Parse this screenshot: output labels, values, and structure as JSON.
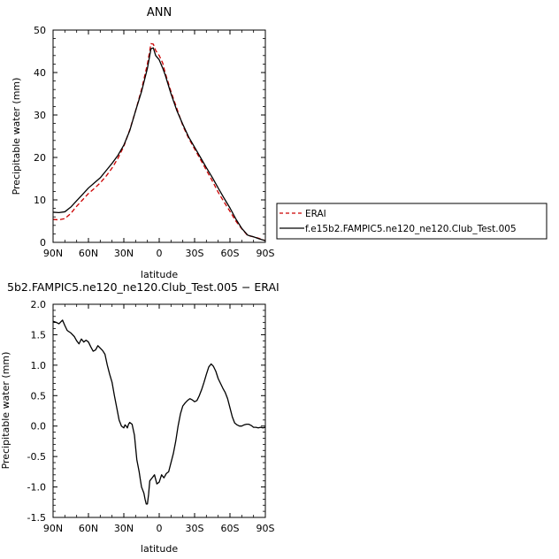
{
  "chart_data": [
    {
      "type": "line",
      "title": "ANN",
      "xlabel": "latitude",
      "ylabel": "Precipitable water  (mm)",
      "xlim": [
        90,
        -90
      ],
      "ylim": [
        0,
        50
      ],
      "x_ticks": [
        90,
        60,
        30,
        0,
        -30,
        -60,
        -90
      ],
      "x_tick_labels": [
        "90N",
        "60N",
        "30N",
        "0",
        "30S",
        "60S",
        "90S"
      ],
      "y_ticks": [
        0,
        10,
        20,
        30,
        40,
        50
      ],
      "y_tick_labels": [
        "0",
        "10",
        "20",
        "30",
        "40",
        "50"
      ],
      "legend_position": "right",
      "series": [
        {
          "name": "ERAI",
          "color": "#cc0000",
          "dash": "dashed",
          "x": [
            90,
            85,
            80,
            75,
            70,
            65,
            60,
            55,
            50,
            45,
            40,
            35,
            30,
            25,
            20,
            15,
            10,
            7,
            5,
            3,
            0,
            -3,
            -5,
            -10,
            -15,
            -20,
            -25,
            -30,
            -35,
            -40,
            -45,
            -50,
            -55,
            -60,
            -65,
            -70,
            -75,
            -80,
            -85,
            -90
          ],
          "y": [
            5.4,
            5.3,
            5.6,
            6.8,
            8.5,
            10.0,
            11.5,
            12.7,
            14.0,
            15.6,
            17.5,
            19.8,
            22.6,
            26.5,
            31.0,
            36.0,
            42.0,
            46.8,
            46.7,
            45.2,
            44.0,
            42.2,
            40.0,
            35.5,
            31.5,
            27.5,
            24.5,
            22.0,
            19.5,
            17.0,
            14.5,
            11.8,
            9.5,
            7.3,
            5.0,
            3.2,
            1.6,
            1.3,
            0.9,
            0.4
          ]
        },
        {
          "name": "f.e15b2.FAMPIC5.ne120_ne120.Club_Test.005",
          "color": "#000000",
          "dash": "solid",
          "x": [
            90,
            85,
            80,
            75,
            70,
            65,
            60,
            55,
            50,
            45,
            40,
            35,
            30,
            25,
            20,
            15,
            10,
            7,
            5,
            3,
            0,
            -3,
            -5,
            -10,
            -15,
            -20,
            -25,
            -30,
            -35,
            -40,
            -45,
            -50,
            -55,
            -60,
            -65,
            -70,
            -75,
            -80,
            -85,
            -90
          ],
          "y": [
            7.1,
            7.0,
            7.2,
            8.3,
            9.8,
            11.3,
            12.8,
            14.0,
            15.2,
            16.9,
            18.6,
            20.5,
            22.9,
            26.3,
            31.0,
            35.5,
            41.0,
            45.6,
            45.8,
            44.0,
            43.0,
            41.0,
            39.5,
            35.0,
            31.0,
            27.8,
            24.8,
            22.4,
            20.0,
            17.6,
            15.3,
            12.8,
            10.4,
            8.1,
            5.5,
            3.3,
            1.7,
            1.3,
            0.8,
            0.4
          ]
        }
      ]
    },
    {
      "type": "line",
      "title": "5b2.FAMPIC5.ne120_ne120.Club_Test.005 − ERAI",
      "xlabel": "latitude",
      "ylabel": "Precipitable water  (mm)",
      "xlim": [
        90,
        -90
      ],
      "ylim": [
        -1.5,
        2.0
      ],
      "x_ticks": [
        90,
        60,
        30,
        0,
        -30,
        -60,
        -90
      ],
      "x_tick_labels": [
        "90N",
        "60N",
        "30N",
        "0",
        "30S",
        "60S",
        "90S"
      ],
      "y_ticks": [
        -1.5,
        -1.0,
        -0.5,
        0.0,
        0.5,
        1.0,
        1.5,
        2.0
      ],
      "y_tick_labels": [
        "-1.5",
        "-1.0",
        "-0.5",
        "0.0",
        "0.5",
        "1.0",
        "1.5",
        "2.0"
      ],
      "series": [
        {
          "color": "#000000",
          "x": [
            90,
            87,
            85,
            82,
            80,
            78,
            75,
            72,
            70,
            68,
            66,
            64,
            62,
            60,
            58,
            56,
            54,
            52,
            50,
            48,
            46,
            44,
            42,
            40,
            38,
            36,
            34,
            32,
            30,
            29,
            28,
            27,
            26,
            25,
            23,
            21,
            20,
            19,
            18,
            17,
            16,
            15,
            13,
            12,
            11,
            10,
            9,
            8,
            6,
            4,
            2,
            0,
            -2,
            -4,
            -6,
            -8,
            -10,
            -12,
            -14,
            -16,
            -18,
            -20,
            -22,
            -24,
            -26,
            -28,
            -30,
            -32,
            -34,
            -36,
            -38,
            -40,
            -42,
            -44,
            -46,
            -48,
            -50,
            -52,
            -54,
            -56,
            -58,
            -60,
            -62,
            -64,
            -66,
            -68,
            -70,
            -72,
            -74,
            -76,
            -78,
            -80,
            -82,
            -84,
            -86,
            -88,
            -90
          ],
          "y": [
            1.72,
            1.7,
            1.68,
            1.74,
            1.65,
            1.57,
            1.53,
            1.47,
            1.4,
            1.35,
            1.43,
            1.38,
            1.41,
            1.38,
            1.3,
            1.23,
            1.25,
            1.32,
            1.28,
            1.24,
            1.18,
            1.0,
            0.85,
            0.72,
            0.5,
            0.3,
            0.1,
            0.0,
            -0.03,
            0.02,
            0.0,
            -0.03,
            0.03,
            0.06,
            0.03,
            -0.15,
            -0.35,
            -0.55,
            -0.65,
            -0.75,
            -0.88,
            -1.0,
            -1.1,
            -1.2,
            -1.28,
            -1.28,
            -1.12,
            -0.9,
            -0.85,
            -0.8,
            -0.95,
            -0.92,
            -0.8,
            -0.85,
            -0.78,
            -0.75,
            -0.6,
            -0.45,
            -0.25,
            0.0,
            0.2,
            0.33,
            0.38,
            0.42,
            0.45,
            0.43,
            0.4,
            0.42,
            0.5,
            0.6,
            0.72,
            0.85,
            0.97,
            1.02,
            0.98,
            0.9,
            0.78,
            0.7,
            0.62,
            0.55,
            0.45,
            0.3,
            0.15,
            0.05,
            0.02,
            0.0,
            0.0,
            0.02,
            0.03,
            0.03,
            0.01,
            -0.02,
            -0.02,
            -0.03,
            -0.02,
            -0.03,
            -0.02
          ]
        }
      ]
    }
  ]
}
